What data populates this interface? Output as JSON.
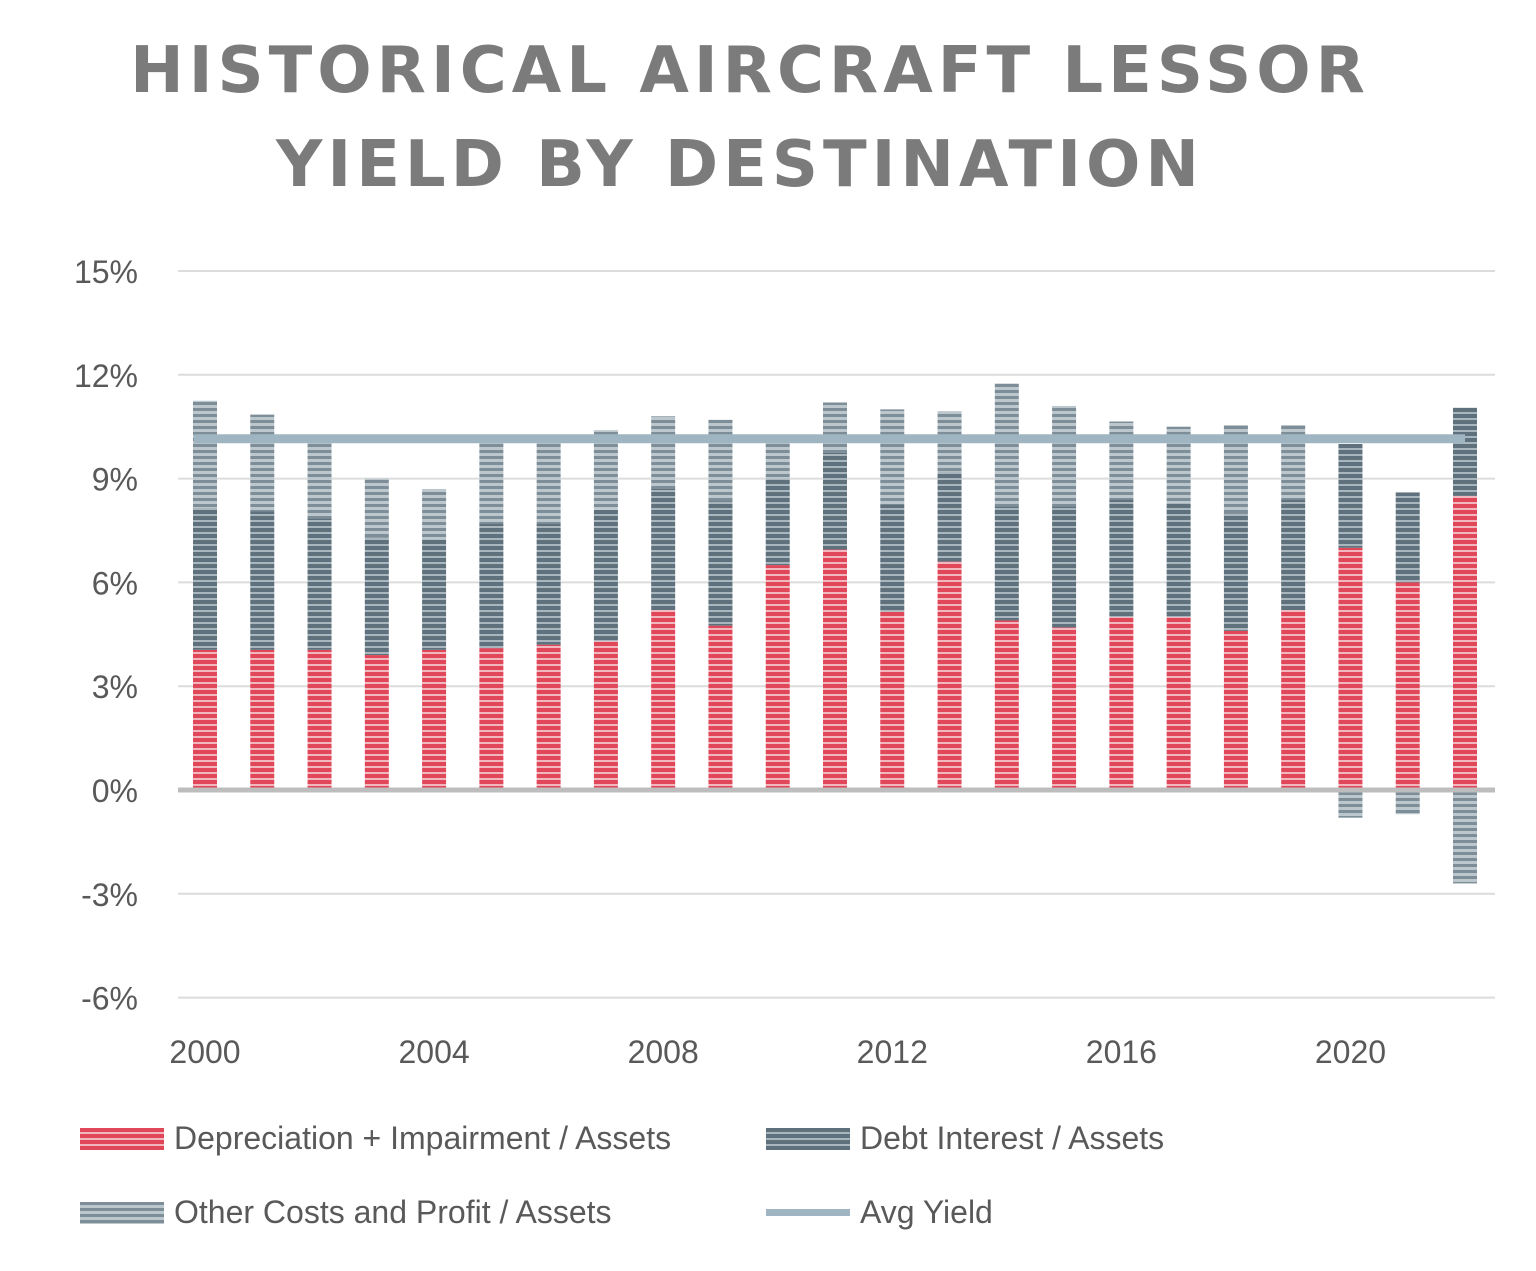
{
  "chart_data": {
    "type": "bar",
    "stacked": true,
    "title": [
      "HISTORICAL AIRCRAFT LESSOR",
      "YIELD  BY DESTINATION"
    ],
    "xlabel": "",
    "ylabel": "",
    "ylim": [
      -6,
      15
    ],
    "yticks": [
      "15%",
      "12%",
      "9%",
      "6%",
      "3%",
      "0%",
      "-3%",
      "-6%"
    ],
    "ytick_values": [
      15,
      12,
      9,
      6,
      3,
      0,
      -3,
      -6
    ],
    "xticks": [
      "2000",
      "2004",
      "2008",
      "2012",
      "2016",
      "2020"
    ],
    "grid": true,
    "legend_position": "bottom",
    "categories": [
      2000,
      2001,
      2002,
      2003,
      2004,
      2005,
      2006,
      2007,
      2008,
      2009,
      2010,
      2011,
      2012,
      2013,
      2014,
      2015,
      2016,
      2017,
      2018,
      2019,
      2020,
      2021,
      2022
    ],
    "series": [
      {
        "name": "Depreciation + Impairment / Assets",
        "color": "#e0485a",
        "values": [
          4.05,
          4.05,
          4.05,
          3.9,
          4.05,
          4.1,
          4.2,
          4.3,
          5.2,
          4.75,
          6.5,
          6.95,
          5.15,
          6.6,
          4.9,
          4.7,
          5.0,
          5.0,
          4.6,
          5.2,
          7.0,
          6.0,
          8.5
        ]
      },
      {
        "name": "Debt Interest / Assets",
        "color": "#5e717c",
        "values": [
          4.1,
          4.0,
          3.8,
          3.4,
          3.2,
          3.6,
          3.5,
          3.8,
          3.5,
          3.6,
          2.5,
          2.8,
          3.1,
          2.6,
          3.3,
          3.5,
          3.4,
          3.3,
          3.4,
          3.2,
          3.0,
          2.6,
          2.55
        ]
      },
      {
        "name": "Other Costs and Profit / Assets",
        "color": "#8b9ba5",
        "values": [
          3.1,
          2.8,
          2.25,
          1.7,
          1.45,
          2.55,
          2.4,
          2.3,
          2.1,
          2.35,
          1.25,
          1.45,
          2.75,
          1.75,
          3.55,
          2.9,
          2.25,
          2.2,
          2.55,
          2.15,
          -0.8,
          -0.7,
          -2.7
        ]
      },
      {
        "name": "Avg Yield",
        "type": "line",
        "color": "#9fb5c1",
        "value": 10.15
      }
    ]
  }
}
